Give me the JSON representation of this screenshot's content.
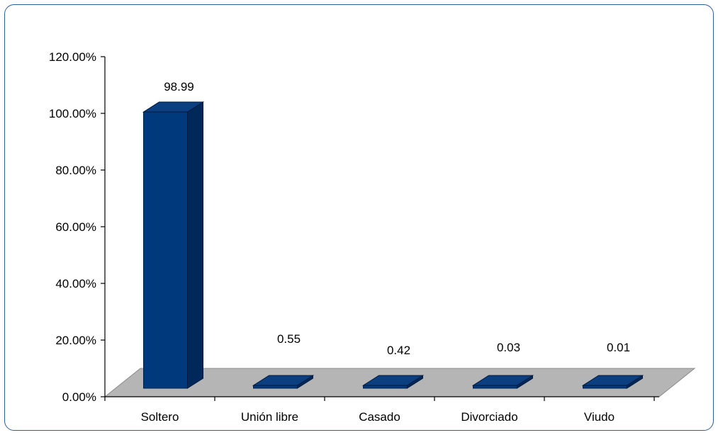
{
  "chart_data": {
    "type": "bar",
    "title": "",
    "xlabel": "",
    "ylabel": "",
    "categories": [
      "Soltero",
      "Unión libre",
      "Casado",
      "Divorciado",
      "Viudo"
    ],
    "values": [
      98.99,
      0.55,
      0.42,
      0.03,
      0.01
    ],
    "data_labels": [
      "98.99",
      "0.55",
      "0.42",
      "0.03",
      "0.01"
    ],
    "ylim": [
      0,
      120
    ],
    "yticks": [
      0,
      20,
      40,
      60,
      80,
      100,
      120
    ],
    "ytick_labels": [
      "0.00%",
      "20.00%",
      "40.00%",
      "60.00%",
      "80.00%",
      "100.00%",
      "120.00%"
    ],
    "grid": false,
    "legend": "none",
    "style": "3d-column",
    "colors": {
      "bar_front": "#003a7d",
      "bar_side": "#00285a",
      "bar_top": "#0b3f80",
      "floor": "#b5b5b5",
      "frame": "#2f5f98"
    }
  }
}
